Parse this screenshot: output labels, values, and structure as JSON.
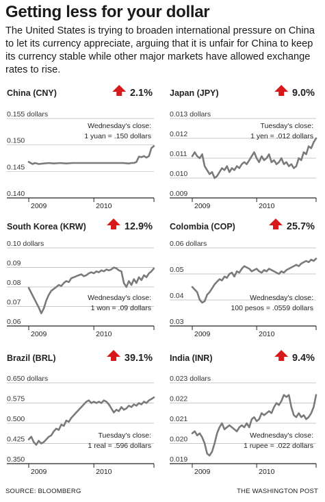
{
  "header": {
    "title": "Getting less for your dollar",
    "subtitle": "The United States is trying to broaden international pressure on China to let its currency appreciate, arguing that it is unfair for China to keep its currency stable while other major markets have allowed exchange rates to rise."
  },
  "footer": {
    "source": "SOURCE: Bloomberg",
    "credit": "THE WASHINGTON POST"
  },
  "colors": {
    "line": "#7a7a7a",
    "arrow": "#d7191c",
    "grid": "#b5b5b5",
    "axis": "#222222"
  },
  "chart_data": [
    {
      "type": "line",
      "title": "China (CNY)",
      "change": "2.1%",
      "direction": "up",
      "ylim": [
        0.14,
        0.155
      ],
      "yticks": [
        "0.155 dollars",
        "0.150",
        "0.145",
        "0.140"
      ],
      "xticks": [
        "2009",
        "2010"
      ],
      "annotation": [
        "Wednesday's close:",
        "1 yuan = .150 dollars"
      ],
      "xlim": [
        0,
        100
      ],
      "x": [
        0,
        3,
        5,
        8,
        12,
        16,
        20,
        25,
        30,
        35,
        40,
        45,
        50,
        55,
        60,
        65,
        70,
        75,
        80,
        82,
        84,
        86,
        88,
        90,
        92,
        94,
        96,
        98,
        100
      ],
      "values": [
        0.1468,
        0.1464,
        0.1466,
        0.1464,
        0.1465,
        0.1466,
        0.1465,
        0.1466,
        0.1465,
        0.1466,
        0.1466,
        0.1466,
        0.1466,
        0.1466,
        0.1466,
        0.1466,
        0.1466,
        0.1466,
        0.1465,
        0.1466,
        0.1466,
        0.1468,
        0.1478,
        0.1477,
        0.1479,
        0.1476,
        0.1479,
        0.1494,
        0.1498
      ]
    },
    {
      "type": "line",
      "title": "Japan (JPY)",
      "change": "9.0%",
      "direction": "up",
      "ylim": [
        0.009,
        0.013
      ],
      "yticks": [
        "0.013 dollars",
        "0.012",
        "0.011",
        "0.010",
        "0.009"
      ],
      "xticks": [
        "2009",
        "2010"
      ],
      "annotation": [
        "Tuesday's close:",
        "1 yen = .012 dollars"
      ],
      "xlim": [
        0,
        100
      ],
      "x": [
        0,
        2,
        4,
        6,
        8,
        10,
        12,
        14,
        16,
        18,
        20,
        22,
        24,
        26,
        28,
        30,
        32,
        34,
        36,
        38,
        40,
        42,
        44,
        46,
        48,
        50,
        52,
        54,
        56,
        58,
        60,
        62,
        64,
        66,
        68,
        70,
        72,
        74,
        76,
        78,
        80,
        82,
        84,
        86,
        88,
        90,
        92,
        94,
        96,
        98,
        100
      ],
      "values": [
        0.0111,
        0.0113,
        0.0111,
        0.011,
        0.0112,
        0.0106,
        0.0104,
        0.0102,
        0.0103,
        0.01,
        0.0101,
        0.0103,
        0.0105,
        0.0104,
        0.0106,
        0.0103,
        0.0105,
        0.0104,
        0.0106,
        0.0105,
        0.0107,
        0.0108,
        0.0107,
        0.0109,
        0.0111,
        0.0113,
        0.011,
        0.0108,
        0.0111,
        0.0109,
        0.011,
        0.0112,
        0.0108,
        0.0109,
        0.0107,
        0.0108,
        0.011,
        0.0107,
        0.0108,
        0.0106,
        0.0107,
        0.0105,
        0.0106,
        0.011,
        0.0109,
        0.0113,
        0.0112,
        0.0116,
        0.0115,
        0.0118,
        0.012
      ]
    },
    {
      "type": "line",
      "title": "South Korea (KRW)",
      "change": "12.9%",
      "direction": "up",
      "ylim": [
        0.06,
        0.1
      ],
      "yticks": [
        "0.10 dollars",
        "0.09",
        "0.08",
        "0.07",
        "0.06"
      ],
      "xticks": [
        "2009",
        "2010"
      ],
      "annotation": [
        "Wednesday's close:",
        "1 won = .09 dollars"
      ],
      "xlim": [
        0,
        100
      ],
      "x": [
        0,
        2,
        4,
        6,
        8,
        10,
        12,
        14,
        16,
        18,
        20,
        22,
        24,
        26,
        28,
        30,
        32,
        34,
        36,
        38,
        40,
        42,
        44,
        46,
        48,
        50,
        52,
        54,
        56,
        58,
        60,
        62,
        64,
        66,
        68,
        70,
        72,
        74,
        76,
        78,
        80,
        82,
        84,
        86,
        88,
        90,
        92,
        94,
        96,
        98,
        100
      ],
      "values": [
        0.0795,
        0.077,
        0.0745,
        0.072,
        0.0695,
        0.0665,
        0.069,
        0.073,
        0.076,
        0.078,
        0.079,
        0.08,
        0.081,
        0.0805,
        0.082,
        0.083,
        0.0825,
        0.0845,
        0.085,
        0.0855,
        0.086,
        0.0865,
        0.0855,
        0.086,
        0.087,
        0.0875,
        0.087,
        0.088,
        0.0875,
        0.0885,
        0.088,
        0.089,
        0.0885,
        0.089,
        0.09,
        0.0895,
        0.0885,
        0.088,
        0.082,
        0.08,
        0.083,
        0.081,
        0.084,
        0.082,
        0.085,
        0.0835,
        0.086,
        0.085,
        0.087,
        0.088,
        0.0895
      ]
    },
    {
      "type": "line",
      "title": "Colombia (COP)",
      "change": "25.7%",
      "direction": "up",
      "ylim": [
        0.03,
        0.06
      ],
      "yticks": [
        "0.06 dollars",
        "0.05",
        "0.04",
        "0.03"
      ],
      "xticks": [
        "2009",
        "2010"
      ],
      "annotation": [
        "Wednesday's close:",
        "100 pesos = .0559 dollars"
      ],
      "xlim": [
        0,
        100
      ],
      "x": [
        0,
        2,
        4,
        6,
        8,
        10,
        12,
        14,
        16,
        18,
        20,
        22,
        24,
        26,
        28,
        30,
        32,
        34,
        36,
        38,
        40,
        42,
        44,
        46,
        48,
        50,
        52,
        54,
        56,
        58,
        60,
        62,
        64,
        66,
        68,
        70,
        72,
        74,
        76,
        78,
        80,
        82,
        84,
        86,
        88,
        90,
        92,
        94,
        96,
        98,
        100
      ],
      "values": [
        0.045,
        0.044,
        0.043,
        0.04,
        0.039,
        0.0395,
        0.042,
        0.043,
        0.0445,
        0.046,
        0.047,
        0.048,
        0.0475,
        0.049,
        0.0485,
        0.05,
        0.0505,
        0.049,
        0.051,
        0.0505,
        0.052,
        0.053,
        0.0525,
        0.052,
        0.051,
        0.0515,
        0.052,
        0.051,
        0.0505,
        0.0515,
        0.051,
        0.052,
        0.0515,
        0.051,
        0.0505,
        0.05,
        0.051,
        0.0505,
        0.0515,
        0.052,
        0.0525,
        0.053,
        0.0535,
        0.053,
        0.054,
        0.0545,
        0.055,
        0.0545,
        0.0555,
        0.055,
        0.0559
      ]
    },
    {
      "type": "line",
      "title": "Brazil (BRL)",
      "change": "39.1%",
      "direction": "up",
      "ylim": [
        0.35,
        0.65
      ],
      "yticks": [
        "0.650 dollars",
        "0.575",
        "0.500",
        "0.425",
        "0.350"
      ],
      "xticks": [
        "2009",
        "2010"
      ],
      "annotation": [
        "Tuesday's close:",
        "1 real = .596 dollars"
      ],
      "xlim": [
        0,
        100
      ],
      "x": [
        0,
        2,
        4,
        6,
        8,
        10,
        12,
        14,
        16,
        18,
        20,
        22,
        24,
        26,
        28,
        30,
        32,
        34,
        36,
        38,
        40,
        42,
        44,
        46,
        48,
        50,
        52,
        54,
        56,
        58,
        60,
        62,
        64,
        66,
        68,
        70,
        72,
        74,
        76,
        78,
        80,
        82,
        84,
        86,
        88,
        90,
        92,
        94,
        96,
        98,
        100
      ],
      "values": [
        0.44,
        0.45,
        0.43,
        0.42,
        0.435,
        0.425,
        0.43,
        0.44,
        0.45,
        0.455,
        0.47,
        0.48,
        0.475,
        0.495,
        0.49,
        0.51,
        0.505,
        0.52,
        0.53,
        0.54,
        0.55,
        0.56,
        0.57,
        0.58,
        0.585,
        0.575,
        0.58,
        0.575,
        0.58,
        0.575,
        0.585,
        0.58,
        0.57,
        0.555,
        0.54,
        0.55,
        0.545,
        0.56,
        0.55,
        0.555,
        0.565,
        0.56,
        0.57,
        0.565,
        0.575,
        0.57,
        0.58,
        0.575,
        0.585,
        0.59,
        0.596
      ]
    },
    {
      "type": "line",
      "title": "India (INR)",
      "change": "9.4%",
      "direction": "up",
      "ylim": [
        0.019,
        0.023
      ],
      "yticks": [
        "0.023 dollars",
        "0.022",
        "0.021",
        "0.020",
        "0.019"
      ],
      "xticks": [
        "2009",
        "2010"
      ],
      "annotation": [
        "Wednesday's close:",
        "1 rupee = .022 dollars"
      ],
      "xlim": [
        0,
        100
      ],
      "x": [
        0,
        2,
        4,
        6,
        8,
        10,
        12,
        14,
        16,
        18,
        20,
        22,
        24,
        26,
        28,
        30,
        32,
        34,
        36,
        38,
        40,
        42,
        44,
        46,
        48,
        50,
        52,
        54,
        56,
        58,
        60,
        62,
        64,
        66,
        68,
        70,
        72,
        74,
        76,
        78,
        80,
        82,
        84,
        86,
        88,
        90,
        92,
        94,
        96,
        98,
        100
      ],
      "values": [
        0.0205,
        0.0206,
        0.0204,
        0.0205,
        0.0203,
        0.02,
        0.0195,
        0.0194,
        0.0196,
        0.02,
        0.0205,
        0.0208,
        0.021,
        0.0207,
        0.0208,
        0.0209,
        0.0208,
        0.0207,
        0.0206,
        0.0208,
        0.0209,
        0.0208,
        0.021,
        0.0208,
        0.0212,
        0.0213,
        0.0211,
        0.0212,
        0.0215,
        0.0214,
        0.0215,
        0.0216,
        0.0215,
        0.0218,
        0.022,
        0.0219,
        0.0221,
        0.0224,
        0.0223,
        0.0224,
        0.0218,
        0.0214,
        0.0213,
        0.0215,
        0.0213,
        0.0214,
        0.0212,
        0.0213,
        0.0215,
        0.0218,
        0.0224
      ]
    }
  ]
}
